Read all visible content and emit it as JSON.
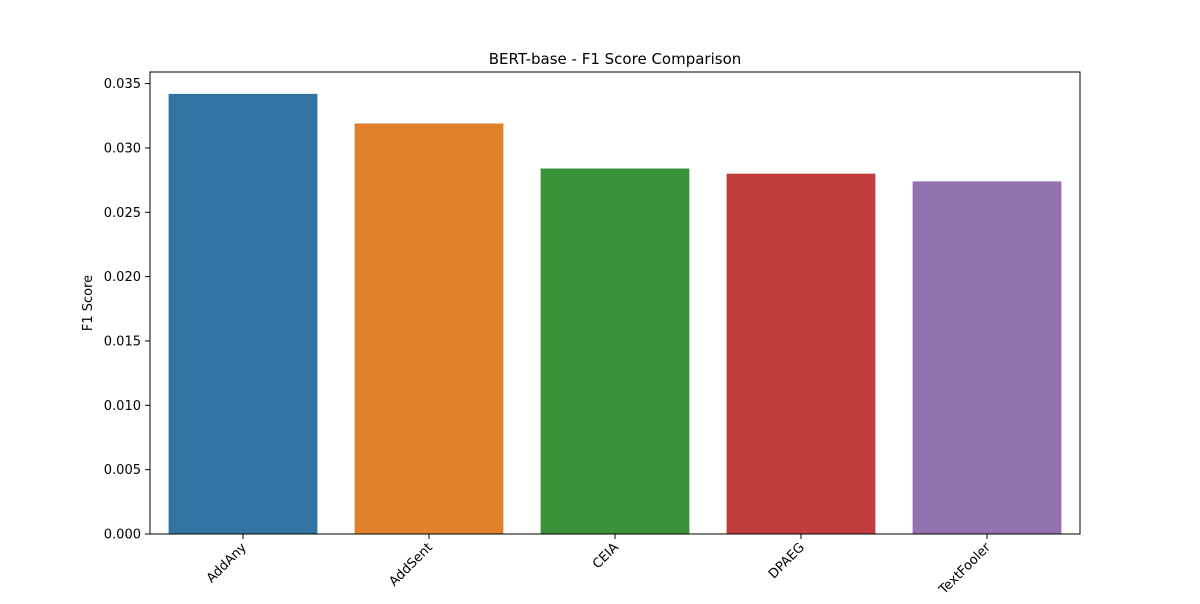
{
  "chart_data": {
    "type": "bar",
    "title": "BERT-base - F1 Score Comparison",
    "xlabel": "",
    "ylabel": "F1 Score",
    "categories": [
      "AddAny",
      "AddSent",
      "CEIA",
      "DPAEG",
      "TextFooler"
    ],
    "values": [
      0.0342,
      0.0319,
      0.0284,
      0.028,
      0.0274
    ],
    "colors": [
      "#3274a1",
      "#e1812c",
      "#3a923a",
      "#c03d3e",
      "#9372b2"
    ],
    "ylim": [
      0,
      0.0359
    ],
    "yticks": [
      0.0,
      0.005,
      0.01,
      0.015,
      0.02,
      0.025,
      0.03,
      0.035
    ],
    "ytick_labels": [
      "0.000",
      "0.005",
      "0.010",
      "0.015",
      "0.020",
      "0.025",
      "0.030",
      "0.035"
    ],
    "grid": false,
    "legend": "none"
  }
}
